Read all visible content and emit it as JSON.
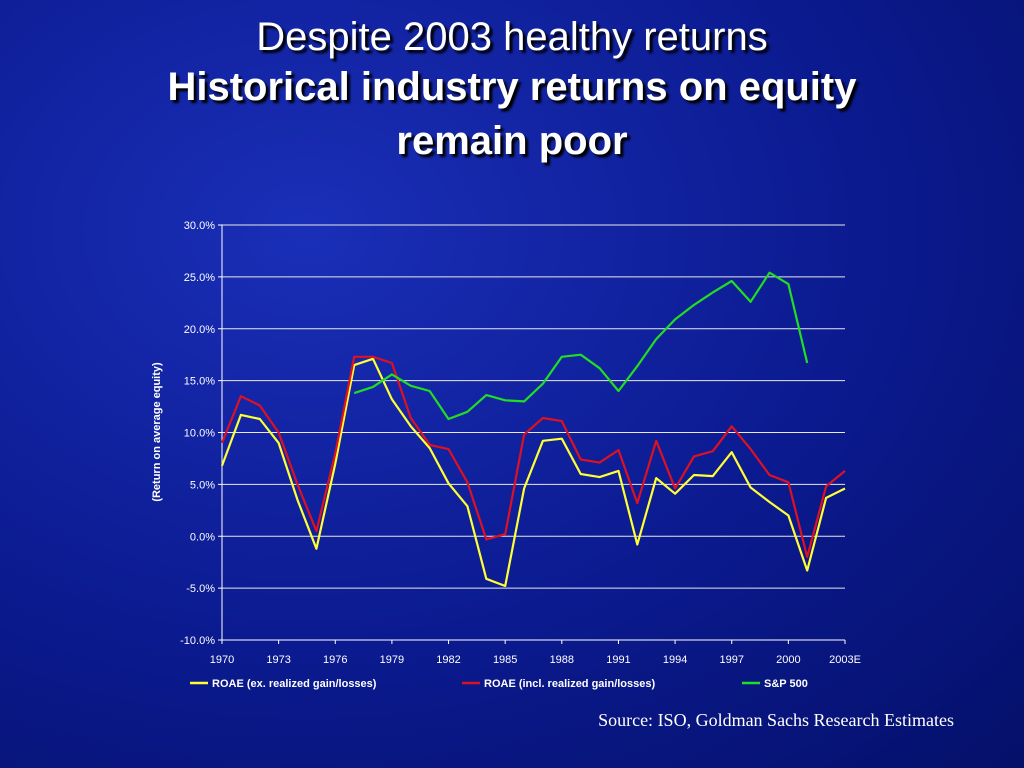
{
  "slide": {
    "title_line1": "Despite 2003 healthy returns",
    "title_line2": "Historical industry returns on equity",
    "title_line3": "remain poor",
    "source": "Source: ISO, Goldman Sachs Research Estimates"
  },
  "chart_data": {
    "type": "line",
    "ylabel": "(Return on average equity)",
    "ylim": [
      -10,
      30
    ],
    "yticks": [
      -10,
      -5,
      0,
      5,
      10,
      15,
      20,
      25,
      30
    ],
    "ytick_labels": [
      "-10.0%",
      "-5.0%",
      "0.0%",
      "5.0%",
      "10.0%",
      "15.0%",
      "20.0%",
      "25.0%",
      "30.0%"
    ],
    "x": [
      1970,
      1971,
      1972,
      1973,
      1974,
      1975,
      1976,
      1977,
      1978,
      1979,
      1980,
      1981,
      1982,
      1983,
      1984,
      1985,
      1986,
      1987,
      1988,
      1989,
      1990,
      1991,
      1992,
      1993,
      1994,
      1995,
      1996,
      1997,
      1998,
      1999,
      2000,
      2001,
      2002,
      2003
    ],
    "xticks": [
      1970,
      1973,
      1976,
      1979,
      1982,
      1985,
      1988,
      1991,
      1994,
      1997,
      2000,
      2003
    ],
    "xtick_labels": [
      "1970",
      "1973",
      "1976",
      "1979",
      "1982",
      "1985",
      "1988",
      "1991",
      "1994",
      "1997",
      "2000",
      "2003E"
    ],
    "grid": "horizontal",
    "legend_position": "bottom",
    "series": [
      {
        "name": "ROAE (ex. realized gain/losses)",
        "color": "#ffff33",
        "values": [
          6.8,
          11.7,
          11.3,
          9.0,
          3.5,
          -1.2,
          7.0,
          16.5,
          17.1,
          13.2,
          10.6,
          8.5,
          5.1,
          2.9,
          -4.1,
          -4.8,
          4.6,
          9.2,
          9.4,
          6.0,
          5.7,
          6.3,
          -0.8,
          5.6,
          4.1,
          5.9,
          5.8,
          8.1,
          4.7,
          3.3,
          2.0,
          -3.3,
          3.7,
          4.6
        ]
      },
      {
        "name": "ROAE (incl. realized gain/losses)",
        "color": "#dd1122",
        "values": [
          9.0,
          13.5,
          12.6,
          10.0,
          5.0,
          0.5,
          8.0,
          17.3,
          17.3,
          16.7,
          11.4,
          8.8,
          8.4,
          5.2,
          -0.3,
          0.2,
          9.8,
          11.4,
          11.1,
          7.4,
          7.1,
          8.3,
          3.2,
          9.2,
          4.6,
          7.7,
          8.2,
          10.6,
          8.4,
          5.9,
          5.2,
          -2.0,
          4.8,
          6.3
        ]
      },
      {
        "name": "S&P 500",
        "color": "#22dd22",
        "values": [
          null,
          null,
          null,
          null,
          null,
          null,
          null,
          13.8,
          14.4,
          15.6,
          14.5,
          14.0,
          11.3,
          12.0,
          13.6,
          13.1,
          13.0,
          14.7,
          17.3,
          17.5,
          16.2,
          14.0,
          16.4,
          19.0,
          20.9,
          22.3,
          23.5,
          24.6,
          22.6,
          25.4,
          24.3,
          16.7,
          null,
          null
        ]
      }
    ]
  }
}
